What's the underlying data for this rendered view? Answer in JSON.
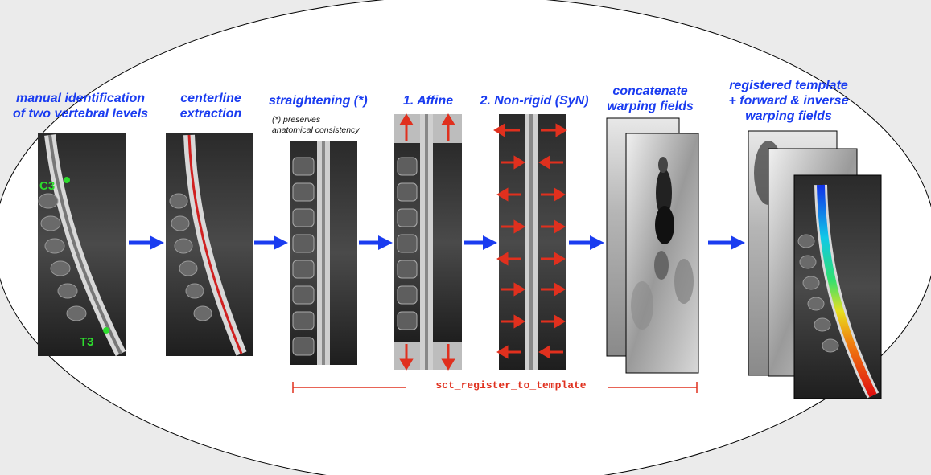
{
  "steps": {
    "manual": {
      "line1": "manual identification",
      "line2": "of two vertebral levels",
      "level_top": "C3",
      "level_bottom": "T3"
    },
    "centerline": {
      "line1": "centerline",
      "line2": "extraction"
    },
    "straightening": {
      "title": "straightening (*)",
      "note_line1": "(*) preserves",
      "note_line2": "anatomical consistency"
    },
    "affine": {
      "title": "1. Affine"
    },
    "nonrigid": {
      "title": "2. Non-rigid (SyN)"
    },
    "concat": {
      "line1": "concatenate",
      "line2": "warping fields"
    },
    "registered": {
      "line1": "registered template",
      "line2": "+ forward & inverse",
      "line3": "warping fields"
    }
  },
  "command": "sct_register_to_template",
  "colors": {
    "label_blue": "#1a3cf0",
    "arrow_blue": "#1a3cf0",
    "command_red": "#e0301e",
    "level_green": "#2ddc2d"
  }
}
